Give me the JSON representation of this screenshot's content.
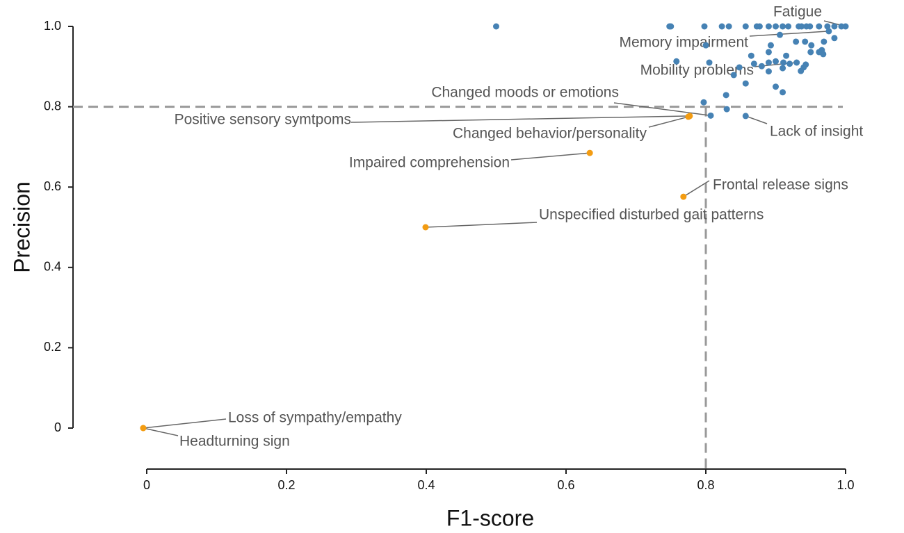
{
  "chart_data": {
    "type": "scatter",
    "xlabel": "F1-score",
    "ylabel": "Precision",
    "xlim": [
      0,
      1
    ],
    "ylim": [
      0,
      1
    ],
    "xticks": [
      0,
      0.2,
      0.4,
      0.6,
      0.8,
      {
        "value": 1,
        "label": "1.0"
      }
    ],
    "yticks": [
      0,
      0.2,
      0.4,
      0.6,
      0.8,
      {
        "value": 1,
        "label": "1.0"
      }
    ],
    "grid": false,
    "hlines": [
      0.8
    ],
    "vlines": [
      0.8
    ],
    "series": [
      {
        "color": "#f39c12",
        "x": [
          -0.005,
          -0.005,
          0.399,
          0.634,
          0.768,
          0.775,
          0.777
        ],
        "values": [
          0,
          0,
          0.5,
          0.685,
          0.576,
          0.775,
          0.777
        ],
        "labels": [
          "Loss of sympathy/empathy",
          "Headturning sign",
          "Unspecified disturbed gait patterns",
          "Impaired comprehension",
          "Frontal release signs",
          "Changed behavior/personality",
          "Positive sensory symtpoms"
        ]
      },
      {
        "color": "#4682b4",
        "x": [
          0.5,
          0.748,
          0.75,
          0.798,
          0.823,
          0.833,
          0.857,
          0.873,
          0.877,
          0.89,
          0.9,
          0.91,
          0.918,
          0.933,
          0.937,
          0.944,
          0.949,
          0.962,
          0.974,
          0.984,
          0.994,
          1.0,
          0.976,
          0.906,
          0.984,
          0.969,
          0.893,
          0.929,
          0.942,
          0.951,
          0.962,
          0.966,
          0.968,
          0.95,
          0.89,
          0.865,
          0.915,
          0.8,
          0.89,
          0.869,
          0.92,
          0.93,
          0.94,
          0.943,
          0.911,
          0.9,
          0.91,
          0.936,
          0.848,
          0.88,
          0.758,
          0.805,
          0.84,
          0.857,
          0.9,
          0.91,
          0.829,
          0.797,
          0.807,
          0.83,
          0.857,
          0.89
        ],
        "values": [
          1,
          1,
          1,
          1,
          1,
          1,
          1,
          1,
          1,
          1,
          1,
          1,
          1,
          1,
          1,
          1,
          1,
          1,
          1,
          1,
          1,
          1,
          0.988,
          0.979,
          0.971,
          0.962,
          0.953,
          0.962,
          0.962,
          0.953,
          0.936,
          0.941,
          0.931,
          0.936,
          0.936,
          0.927,
          0.927,
          0.953,
          0.91,
          0.907,
          0.907,
          0.91,
          0.898,
          0.905,
          0.91,
          0.913,
          0.896,
          0.889,
          0.898,
          0.901,
          0.913,
          0.91,
          0.879,
          0.858,
          0.85,
          0.836,
          0.829,
          0.811,
          0.778,
          0.794,
          0.777,
          0.888
        ],
        "labels": [
          null,
          null,
          null,
          null,
          null,
          null,
          null,
          null,
          null,
          null,
          null,
          null,
          null,
          null,
          null,
          null,
          null,
          null,
          null,
          null,
          null,
          "Fatigue",
          "Memory impairment",
          null,
          null,
          null,
          null,
          null,
          null,
          null,
          null,
          null,
          null,
          null,
          null,
          null,
          null,
          null,
          null,
          null,
          null,
          "Mobility problems",
          null,
          null,
          null,
          null,
          null,
          null,
          null,
          null,
          null,
          null,
          null,
          null,
          null,
          null,
          null,
          null,
          "Changed moods or emotions",
          null,
          "Lack of insight",
          null
        ]
      }
    ]
  }
}
